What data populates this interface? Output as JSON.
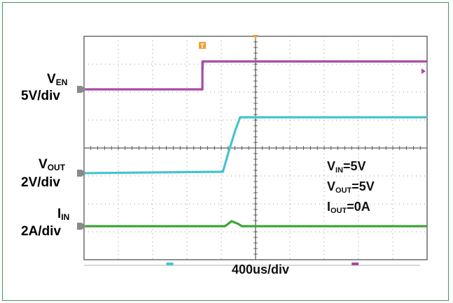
{
  "chart_data": {
    "type": "line",
    "title": "",
    "xlabel": "400us/div",
    "grid": true,
    "x_divisions": 10,
    "y_divisions": 8,
    "x_unit": "div",
    "y_unit": "div",
    "series": [
      {
        "name": "V_EN",
        "color": "#a64ca6",
        "label_main": "V",
        "label_sub": "EN",
        "scale": "5V/div",
        "x": [
          0,
          3.45,
          3.45,
          10
        ],
        "y": [
          6.1,
          6.1,
          7.1,
          7.1
        ]
      },
      {
        "name": "V_OUT",
        "color": "#46c4cc",
        "label_main": "V",
        "label_sub": "OUT",
        "scale": "2V/div",
        "x": [
          0,
          4.05,
          4.2,
          4.4,
          4.55,
          10
        ],
        "y": [
          3.1,
          3.15,
          3.8,
          4.6,
          5.1,
          5.1
        ]
      },
      {
        "name": "I_IN",
        "color": "#3fa535",
        "label_main": "I",
        "label_sub": "IN",
        "scale": "2A/div",
        "x": [
          0,
          4.1,
          4.2,
          4.3,
          4.5,
          4.6,
          10
        ],
        "y": [
          1.2,
          1.2,
          1.28,
          1.38,
          1.28,
          1.2,
          1.2
        ]
      }
    ],
    "annotations": [
      {
        "main": "V",
        "sub": "IN",
        "rest": "=5V"
      },
      {
        "main": "V",
        "sub": "OUT",
        "rest": "=5V"
      },
      {
        "main": "I",
        "sub": "OUT",
        "rest": "=0A"
      }
    ],
    "trigger_marker": "T"
  }
}
